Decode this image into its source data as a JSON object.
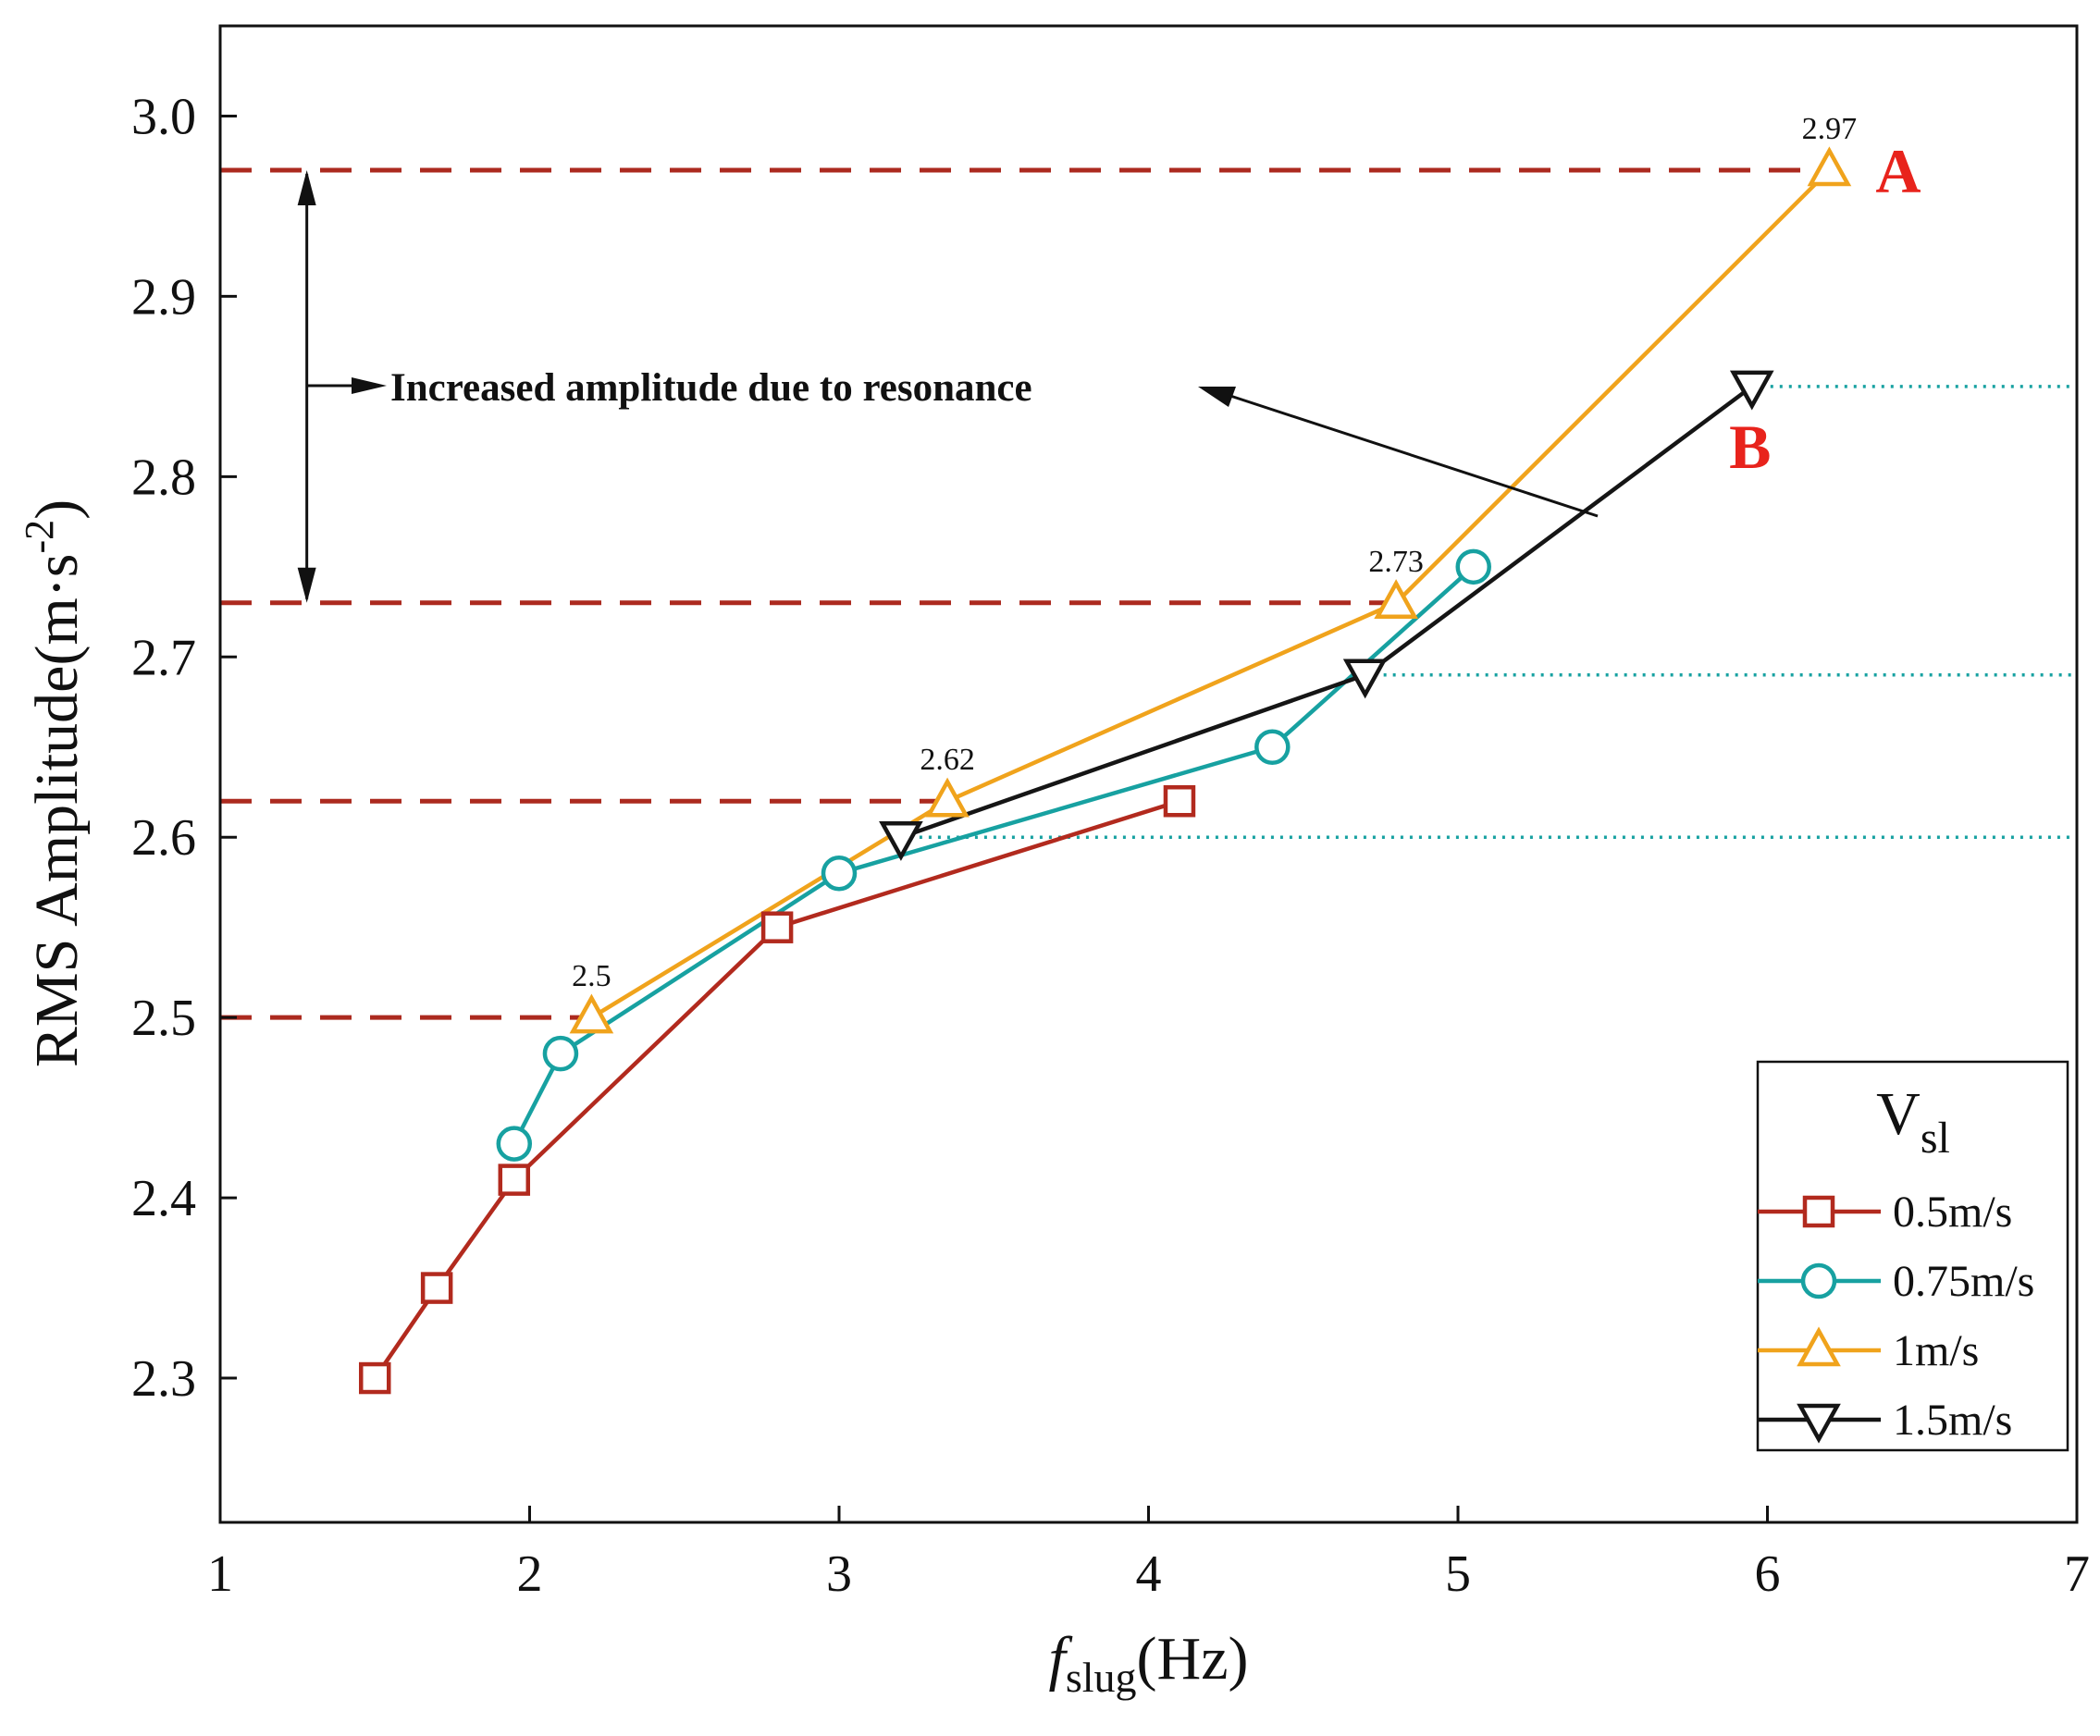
{
  "chart_data": {
    "type": "line",
    "xlabel": {
      "main": "f",
      "sub": "slug",
      "unit": "(Hz)"
    },
    "ylabel": {
      "main": "RMS Amplitude(m·s",
      "sup": "-2",
      "close": ")"
    },
    "xlim": [
      1,
      7
    ],
    "ylim": [
      2.22,
      3.05
    ],
    "x_ticks": [
      1,
      2,
      3,
      4,
      5,
      6,
      7
    ],
    "x_tick_labels": [
      "1",
      "2",
      "3",
      "4",
      "5",
      "6",
      "7"
    ],
    "y_ticks": [
      2.3,
      2.4,
      2.5,
      2.6,
      2.7,
      2.8,
      2.9,
      3.0
    ],
    "y_tick_labels": [
      "2.3",
      "2.4",
      "2.5",
      "2.6",
      "2.7",
      "2.8",
      "2.9",
      "3.0"
    ],
    "series": [
      {
        "name": "0.5m/s",
        "color": "#b22a1e",
        "marker": "square",
        "x": [
          1.5,
          1.7,
          1.95,
          2.8,
          4.1
        ],
        "y": [
          2.3,
          2.35,
          2.41,
          2.55,
          2.62
        ]
      },
      {
        "name": "0.75m/s",
        "color": "#17a1a1",
        "marker": "circle",
        "x": [
          1.95,
          2.1,
          3.0,
          4.4,
          5.05
        ],
        "y": [
          2.43,
          2.48,
          2.58,
          2.65,
          2.75
        ]
      },
      {
        "name": "1m/s",
        "color": "#f0a31c",
        "marker": "triangle-up",
        "x": [
          2.2,
          3.35,
          4.8,
          6.2
        ],
        "y": [
          2.5,
          2.62,
          2.73,
          2.97
        ]
      },
      {
        "name": "1.5m/s",
        "color": "#151515",
        "marker": "triangle-down",
        "x": [
          3.2,
          4.7,
          5.95
        ],
        "y": [
          2.6,
          2.69,
          2.85
        ]
      }
    ],
    "reference_lines": {
      "dashed": {
        "color": "#ac2a1f",
        "lines": [
          {
            "y": 2.97,
            "x_end": 6.2
          },
          {
            "y": 2.73,
            "x_end": 4.8
          },
          {
            "y": 2.62,
            "x_end": 3.35
          },
          {
            "y": 2.5,
            "x_end": 2.2
          }
        ]
      },
      "dotted": {
        "color": "#17a1a1",
        "lines": [
          {
            "y": 2.85,
            "x_start": 5.95
          },
          {
            "y": 2.69,
            "x_start": 4.7
          },
          {
            "y": 2.6,
            "x_start": 3.2
          }
        ]
      }
    },
    "point_labels": [
      {
        "text": "2.97",
        "x": 6.2,
        "y": 2.97
      },
      {
        "text": "2.73",
        "x": 4.8,
        "y": 2.73
      },
      {
        "text": "2.62",
        "x": 3.35,
        "y": 2.62
      },
      {
        "text": "2.5",
        "x": 2.2,
        "y": 2.5
      }
    ],
    "annotations": {
      "resonance_text": "Increased amplitude due to resonance",
      "double_arrow": {
        "x": 1.28,
        "y_from": 2.97,
        "y_to": 2.73
      },
      "point_A": {
        "text": "A",
        "color": "#e8231c",
        "x": 6.2,
        "y": 2.97
      },
      "point_B": {
        "text": "B",
        "color": "#e8231c",
        "x": 5.95,
        "y": 2.85
      }
    },
    "legend": {
      "title": "V",
      "title_sub": "sl",
      "position": "bottom-right"
    }
  }
}
